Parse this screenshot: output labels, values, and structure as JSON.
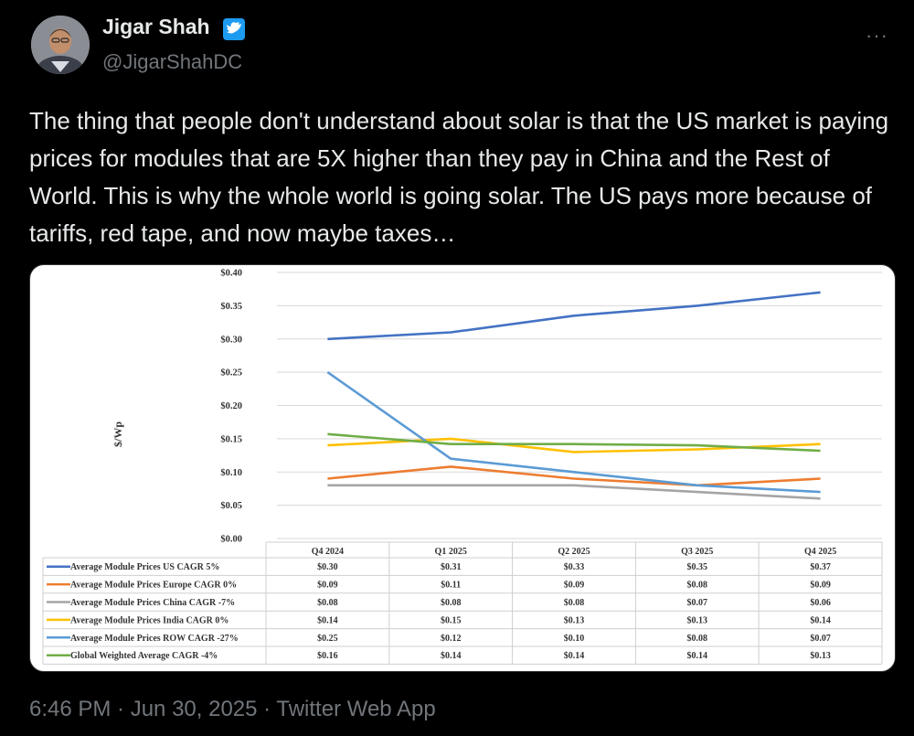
{
  "author": {
    "name": "Jigar Shah",
    "handle": "@JigarShahDC"
  },
  "more_icon": "···",
  "tweet_text": "The thing that people don't understand about solar is that the US market is paying prices for modules that are 5X higher than they pay in China and the Rest of World. This is why the whole world is going solar. The US pays more because of tariffs, red tape, and now maybe taxes…",
  "footer": {
    "timestamp": "6:46 PM · Jun 30, 2025 · Twitter Web App"
  },
  "chart_data": {
    "type": "line",
    "ylabel": "$/Wp",
    "ylim": [
      0,
      0.4
    ],
    "y_ticks": [
      "$0.00",
      "$0.05",
      "$0.10",
      "$0.15",
      "$0.20",
      "$0.25",
      "$0.30",
      "$0.35",
      "$0.40"
    ],
    "categories": [
      "Q4 2024",
      "Q1 2025",
      "Q2 2025",
      "Q3 2025",
      "Q4 2025"
    ],
    "grid": true,
    "legend": "data-table-below",
    "series": [
      {
        "name": "Average Module Prices US CAGR 5%",
        "color": "#4472c4",
        "values": [
          0.3,
          0.31,
          0.335,
          0.35,
          0.37
        ],
        "labels": [
          "$0.30",
          "$0.31",
          "$0.33",
          "$0.35",
          "$0.37"
        ]
      },
      {
        "name": "Average Module Prices Europe CAGR 0%",
        "color": "#ed7d31",
        "values": [
          0.09,
          0.108,
          0.09,
          0.08,
          0.09
        ],
        "labels": [
          "$0.09",
          "$0.11",
          "$0.09",
          "$0.08",
          "$0.09"
        ]
      },
      {
        "name": "Average Module Prices China CAGR  -7%",
        "color": "#a5a5a5",
        "values": [
          0.08,
          0.08,
          0.08,
          0.07,
          0.06
        ],
        "labels": [
          "$0.08",
          "$0.08",
          "$0.08",
          "$0.07",
          "$0.06"
        ]
      },
      {
        "name": "Average Module Prices India CAGR 0%",
        "color": "#ffc000",
        "values": [
          0.14,
          0.15,
          0.13,
          0.134,
          0.142
        ],
        "labels": [
          "$0.14",
          "$0.15",
          "$0.13",
          "$0.13",
          "$0.14"
        ]
      },
      {
        "name": "Average Module Prices ROW CAGR -27%",
        "color": "#5b9bd5",
        "values": [
          0.25,
          0.12,
          0.1,
          0.08,
          0.07
        ],
        "labels": [
          "$0.25",
          "$0.12",
          "$0.10",
          "$0.08",
          "$0.07"
        ]
      },
      {
        "name": "Global Weighted Average CAGR -4%",
        "color": "#70ad47",
        "values": [
          0.157,
          0.142,
          0.142,
          0.14,
          0.132
        ],
        "labels": [
          "$0.16",
          "$0.14",
          "$0.14",
          "$0.14",
          "$0.13"
        ]
      }
    ]
  }
}
